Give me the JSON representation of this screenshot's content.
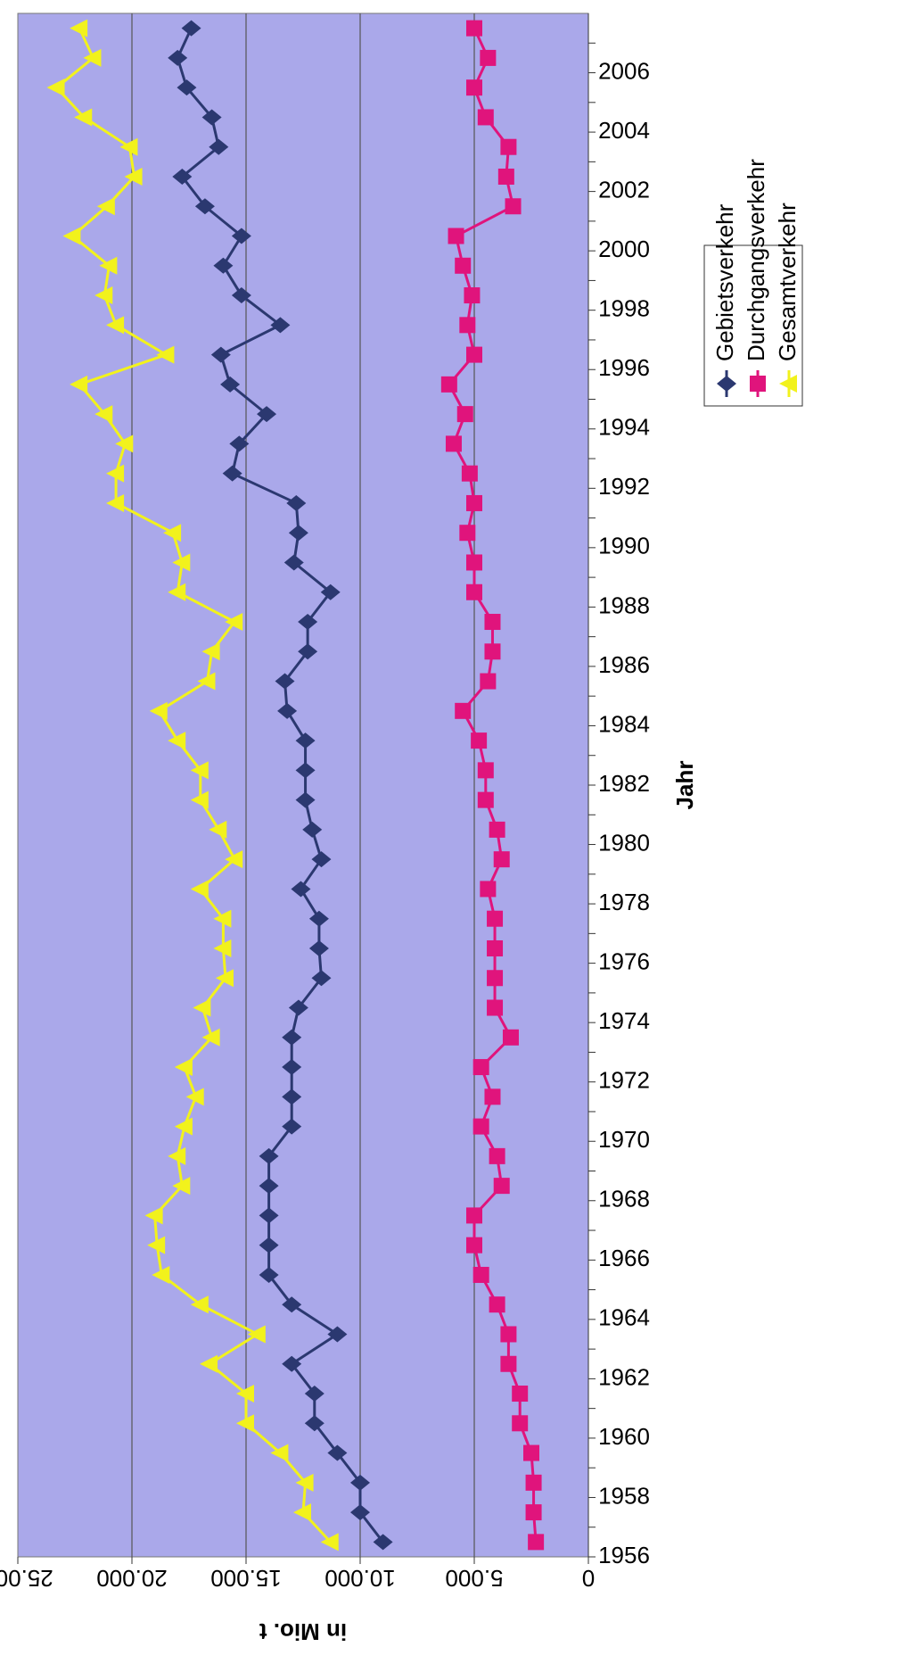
{
  "chart_data": {
    "type": "line",
    "x_label": "Jahr",
    "y_label": "in Mio. t",
    "categories": [
      "1956",
      null,
      "1958",
      null,
      "1960",
      null,
      "1962",
      null,
      "1964",
      null,
      "1966",
      null,
      "1968",
      null,
      "1970",
      null,
      "1972",
      null,
      "1974",
      null,
      "1976",
      null,
      "1978",
      null,
      "1980",
      null,
      "1982",
      null,
      "1984",
      null,
      "1986",
      null,
      "1988",
      null,
      "1990",
      null,
      "1992",
      null,
      "1994",
      null,
      "1996",
      null,
      "1998",
      null,
      "2000",
      null,
      "2002",
      null,
      "2004",
      null,
      "2006",
      null
    ],
    "series": [
      {
        "name": "Gebietsverkehr",
        "color": "#2b3870",
        "marker": "diamond",
        "values": [
          9000,
          10000,
          10000,
          11000,
          12000,
          12000,
          13000,
          11000,
          13000,
          14000,
          14000,
          14000,
          14000,
          14000,
          13000,
          13000,
          13000,
          13000,
          12700,
          11700,
          11800,
          11800,
          12600,
          11700,
          12100,
          12400,
          12400,
          12400,
          13200,
          13300,
          12300,
          12300,
          11300,
          12900,
          12700,
          12800,
          15600,
          15300,
          14100,
          15700,
          16100,
          13500,
          15200,
          16000,
          15200,
          16800,
          17800,
          16200,
          16500,
          17600,
          18000,
          17400
        ]
      },
      {
        "name": "Durchgangsverkehr",
        "color": "#e0147c",
        "marker": "square",
        "values": [
          2300,
          2400,
          2400,
          2500,
          3000,
          3000,
          3500,
          3500,
          4000,
          4700,
          5000,
          5000,
          3800,
          4000,
          4700,
          4200,
          4700,
          3400,
          4100,
          4100,
          4100,
          4100,
          4400,
          3800,
          4000,
          4500,
          4500,
          4800,
          5500,
          4400,
          4200,
          4200,
          5000,
          5000,
          5300,
          5000,
          5200,
          5900,
          5400,
          6100,
          5000,
          5300,
          5100,
          5500,
          5800,
          3300,
          3600,
          3500,
          4500,
          5000,
          4400,
          5000
        ]
      },
      {
        "name": "Gesamtverkehr",
        "color": "#f2f21c",
        "marker": "triangle",
        "values": [
          11300,
          12500,
          12400,
          13500,
          15000,
          15000,
          16600,
          14500,
          17000,
          18700,
          18900,
          19000,
          17800,
          18000,
          17700,
          17200,
          17700,
          16500,
          16900,
          15900,
          16000,
          16000,
          17000,
          15500,
          16200,
          17000,
          17000,
          18000,
          18800,
          16700,
          16500,
          15500,
          18000,
          17800,
          18200,
          20700,
          20700,
          20300,
          21200,
          22300,
          18500,
          20700,
          21200,
          21000,
          22600,
          21100,
          19900,
          20100,
          22100,
          23300,
          21700,
          22300
        ]
      }
    ],
    "ylim": [
      0,
      25000
    ],
    "yticks": [
      0,
      {
        "value": 5000,
        "label": "5.000"
      },
      {
        "value": 10000,
        "label": "10.000"
      },
      {
        "value": 15000,
        "label": "15.000"
      },
      {
        "value": 20000,
        "label": "20.000"
      },
      {
        "value": 25000,
        "label": "25.000"
      }
    ],
    "grid": true,
    "legend": "right",
    "rotated": true
  }
}
